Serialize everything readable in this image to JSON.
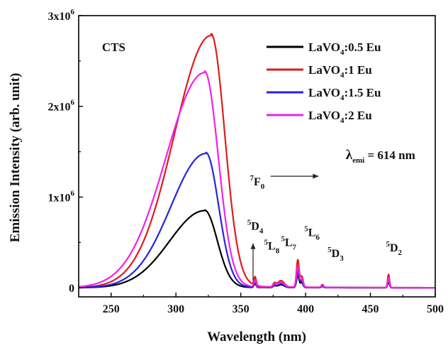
{
  "chart_data": {
    "type": "line",
    "xlabel": "Wavelength (nm)",
    "ylabel": "Emission Intensity (arb. unit)",
    "xlim": [
      225,
      500
    ],
    "ylim": [
      -100000,
      3000000
    ],
    "x_ticks": [
      250,
      300,
      350,
      400,
      450,
      500
    ],
    "y_ticks": [
      0,
      1000000,
      2000000,
      3000000
    ],
    "y_tick_labels": [
      {
        "base": "0",
        "exp": ""
      },
      {
        "base": "1x10",
        "exp": "6"
      },
      {
        "base": "2x10",
        "exp": "6"
      },
      {
        "base": "3x10",
        "exp": "6"
      }
    ],
    "legend_position": "top-right",
    "series": [
      {
        "name": "LaVO4:0.5 Eu",
        "label_main": "LaVO",
        "label_sub": "4",
        "label_tail": ":0.5 Eu",
        "color": "#000000",
        "peak": 850000,
        "peak_x": 322,
        "width_l": 38,
        "width_r": 14,
        "f_scale": 0.45
      },
      {
        "name": "LaVO4:1 Eu",
        "label_main": "LaVO",
        "label_sub": "4",
        "label_tail": ":1 Eu",
        "color": "#e01b1b",
        "peak": 2780000,
        "peak_x": 327,
        "width_l": 40,
        "width_r": 15,
        "f_scale": 1.0
      },
      {
        "name": "LaVO4:1.5 Eu",
        "label_main": "LaVO",
        "label_sub": "4",
        "label_tail": ":1.5 Eu",
        "color": "#2424e0",
        "peak": 1480000,
        "peak_x": 323,
        "width_l": 38,
        "width_r": 14,
        "f_scale": 0.6
      },
      {
        "name": "LaVO4:2 Eu",
        "label_main": "LaVO",
        "label_sub": "4",
        "label_tail": ":2 Eu",
        "color": "#ee22ee",
        "peak": 2370000,
        "peak_x": 322,
        "width_l": 42,
        "width_r": 15,
        "f_scale": 0.75
      }
    ],
    "f_lines": [
      {
        "x": 361,
        "h": 95000,
        "w": 1.2
      },
      {
        "x": 376,
        "h": 40000,
        "w": 1.5
      },
      {
        "x": 381,
        "h": 70000,
        "w": 3.5
      },
      {
        "x": 394,
        "h": 300000,
        "w": 1.4
      },
      {
        "x": 397,
        "h": 120000,
        "w": 1.5
      },
      {
        "x": 413,
        "h": 30000,
        "w": 1.2
      },
      {
        "x": 464,
        "h": 145000,
        "w": 1.0
      }
    ],
    "annotations": [
      {
        "main": "CTS",
        "sup": "",
        "sub": "",
        "x": 243,
        "y": 2610000
      },
      {
        "main": "D",
        "sup": "5",
        "sub": "4",
        "x": 355,
        "y": 640000
      },
      {
        "main": "L",
        "sup": "5",
        "sub": "8",
        "x": 368,
        "y": 420000
      },
      {
        "main": "L",
        "sup": "5",
        "sub": "7",
        "x": 381,
        "y": 460000
      },
      {
        "main": "L",
        "sup": "5",
        "sub": "6",
        "x": 399,
        "y": 570000
      },
      {
        "main": "D",
        "sup": "5",
        "sub": "3",
        "x": 417,
        "y": 340000
      },
      {
        "main": "D",
        "sup": "5",
        "sub": "2",
        "x": 462,
        "y": 400000
      },
      {
        "main": "F",
        "sup": "7",
        "sub": "0",
        "x": 357,
        "y": 1130000
      },
      {
        "main": "λ",
        "sup": "",
        "sub": "emi",
        "tail": "= 614 nm",
        "x": 431,
        "y": 1420000
      }
    ]
  }
}
